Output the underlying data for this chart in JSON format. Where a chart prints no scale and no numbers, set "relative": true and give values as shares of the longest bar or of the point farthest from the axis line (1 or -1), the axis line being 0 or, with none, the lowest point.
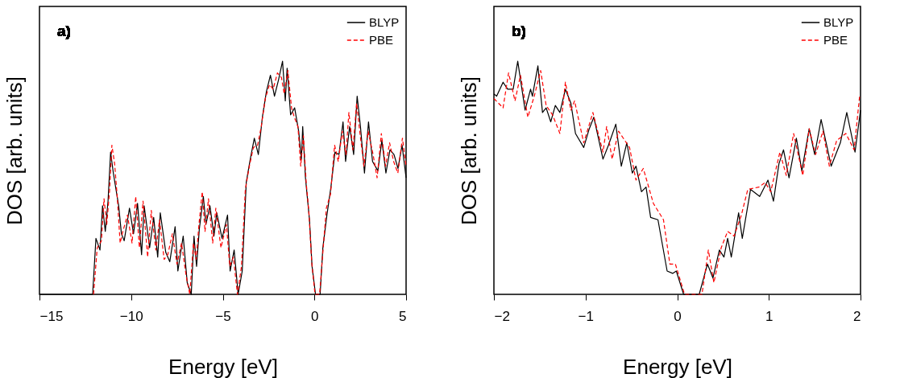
{
  "chart_data": [
    {
      "type": "line",
      "xlabel": "Energy [eV]",
      "ylabel": "DOS [arb. units]",
      "annotations": [
        "a)"
      ],
      "relative": true,
      "xlim": [
        -15,
        5
      ],
      "xticks": [
        -15,
        -10,
        -5,
        0,
        5
      ],
      "legend": "top right",
      "grid": false,
      "series": [
        {
          "name": "BLYP",
          "color": "#000000",
          "line_style": "solid",
          "x": [
            -15,
            -12.1,
            -11.92,
            -11.7,
            -11.56,
            -11.41,
            -11.26,
            -11.12,
            -10.97,
            -10.68,
            -10.53,
            -10.38,
            -10.09,
            -9.87,
            -9.65,
            -9.43,
            -9.29,
            -8.99,
            -8.77,
            -8.55,
            -8.41,
            -8.11,
            -7.89,
            -7.6,
            -7.45,
            -7.16,
            -6.94,
            -6.72,
            -6.57,
            -6.43,
            -6.28,
            -6.06,
            -5.92,
            -5.7,
            -5.48,
            -5.33,
            -5.04,
            -4.74,
            -4.6,
            -4.38,
            -4.16,
            -3.94,
            -3.72,
            -3.5,
            -3.28,
            -3.06,
            -2.84,
            -2.62,
            -2.4,
            -2.18,
            -1.96,
            -1.74,
            -1.59,
            -1.49,
            -1.3,
            -1.08,
            -0.86,
            -0.71,
            -0.64,
            -0.49,
            -0.27,
            -0.13,
            0.06,
            0.31,
            0.46,
            0.68,
            0.9,
            1.12,
            1.34,
            1.56,
            1.7,
            1.92,
            2.14,
            2.33,
            2.51,
            2.73,
            2.95,
            3.17,
            3.46,
            3.68,
            3.9,
            4.12,
            4.34,
            4.56,
            4.78,
            5.0
          ],
          "values": [
            0,
            0,
            0.24,
            0.19,
            0.38,
            0.27,
            0.4,
            0.61,
            0.52,
            0.38,
            0.26,
            0.23,
            0.37,
            0.26,
            0.39,
            0.17,
            0.38,
            0.2,
            0.33,
            0.16,
            0.35,
            0.18,
            0.14,
            0.29,
            0.1,
            0.25,
            0.05,
            0,
            0.25,
            0.12,
            0.28,
            0.42,
            0.3,
            0.38,
            0.25,
            0.35,
            0.24,
            0.34,
            0.1,
            0.19,
            0,
            0.1,
            0.48,
            0.58,
            0.67,
            0.6,
            0.76,
            0.87,
            0.94,
            0.85,
            0.92,
            1.0,
            0.83,
            0.97,
            0.77,
            0.8,
            0.7,
            0.58,
            0.72,
            0.5,
            0.32,
            0.12,
            0,
            0,
            0.2,
            0.34,
            0.46,
            0.61,
            0.6,
            0.74,
            0.57,
            0.72,
            0.6,
            0.85,
            0.72,
            0.52,
            0.74,
            0.57,
            0.53,
            0.66,
            0.52,
            0.62,
            0.6,
            0.54,
            0.64,
            0.5
          ]
        },
        {
          "name": "PBE",
          "color": "#ff0000",
          "line_style": "dashed",
          "x": [
            -12.05,
            -11.85,
            -11.62,
            -11.48,
            -11.33,
            -11.18,
            -11.05,
            -10.9,
            -10.75,
            -10.6,
            -10.45,
            -10.2,
            -9.95,
            -9.75,
            -9.55,
            -9.35,
            -9.1,
            -8.9,
            -8.65,
            -8.45,
            -8.2,
            -8.0,
            -7.75,
            -7.5,
            -7.25,
            -7.0,
            -6.8,
            -6.6,
            -6.45,
            -6.3,
            -6.12,
            -5.97,
            -5.78,
            -5.55,
            -5.38,
            -5.1,
            -4.8,
            -4.62,
            -4.42,
            -4.2,
            -3.98,
            -3.77,
            -3.55,
            -3.33,
            -3.1,
            -2.9,
            -2.68,
            -2.45,
            -2.25,
            -2.02,
            -1.8,
            -1.65,
            -1.45,
            -1.25,
            -1.1,
            -0.9,
            -0.75,
            -0.6,
            -0.45,
            -0.3,
            -0.15,
            0.03,
            0.28,
            0.45,
            0.65,
            0.88,
            1.1,
            1.3,
            1.52,
            1.72,
            1.88,
            2.1,
            2.3,
            2.5,
            2.7,
            2.93,
            3.2,
            3.42,
            3.65,
            3.88,
            4.1,
            4.32,
            4.55,
            4.8,
            5.0
          ],
          "values": [
            0,
            0.2,
            0.23,
            0.41,
            0.3,
            0.44,
            0.64,
            0.56,
            0.41,
            0.22,
            0.27,
            0.34,
            0.22,
            0.42,
            0.2,
            0.4,
            0.16,
            0.36,
            0.19,
            0.32,
            0.15,
            0.17,
            0.26,
            0.13,
            0.22,
            0.08,
            0,
            0.22,
            0.15,
            0.3,
            0.44,
            0.27,
            0.41,
            0.22,
            0.37,
            0.2,
            0.3,
            0.12,
            0.16,
            0,
            0.12,
            0.45,
            0.55,
            0.63,
            0.64,
            0.72,
            0.84,
            0.9,
            0.88,
            0.95,
            0.93,
            0.86,
            0.96,
            0.8,
            0.76,
            0.72,
            0.55,
            0.68,
            0.48,
            0.35,
            0.14,
            0,
            0,
            0.17,
            0.37,
            0.43,
            0.64,
            0.57,
            0.7,
            0.6,
            0.78,
            0.62,
            0.82,
            0.68,
            0.55,
            0.7,
            0.6,
            0.5,
            0.69,
            0.55,
            0.65,
            0.57,
            0.52,
            0.67,
            0.55
          ]
        }
      ]
    },
    {
      "type": "line",
      "xlabel": "Energy [eV]",
      "ylabel": "DOS [arb. units]",
      "annotations": [
        "b)"
      ],
      "relative": true,
      "xlim": [
        -2,
        2
      ],
      "xticks": [
        -2,
        -1,
        0,
        1,
        2
      ],
      "legend": "top right",
      "grid": false,
      "series": [
        {
          "name": "BLYP",
          "color": "#000000",
          "line_style": "solid",
          "x": [
            -2,
            -1.97,
            -1.9,
            -1.85,
            -1.79,
            -1.74,
            -1.66,
            -1.6,
            -1.58,
            -1.52,
            -1.47,
            -1.43,
            -1.38,
            -1.33,
            -1.28,
            -1.22,
            -1.16,
            -1.11,
            -1.02,
            -0.96,
            -0.91,
            -0.81,
            -0.75,
            -0.67,
            -0.61,
            -0.55,
            -0.49,
            -0.45,
            -0.39,
            -0.34,
            -0.29,
            -0.21,
            -0.11,
            -0.05,
            -0.01,
            0.07,
            0.24,
            0.33,
            0.39,
            0.46,
            0.51,
            0.55,
            0.59,
            0.67,
            0.71,
            0.8,
            0.9,
            0.99,
            1.05,
            1.11,
            1.16,
            1.22,
            1.3,
            1.36,
            1.44,
            1.5,
            1.57,
            1.68,
            1.78,
            1.85,
            1.94,
            2.0
          ],
          "values": [
            0.86,
            0.85,
            0.91,
            0.88,
            0.88,
            1.0,
            0.79,
            0.88,
            0.85,
            0.98,
            0.78,
            0.8,
            0.74,
            0.81,
            0.78,
            0.88,
            0.82,
            0.69,
            0.63,
            0.71,
            0.76,
            0.58,
            0.64,
            0.73,
            0.55,
            0.65,
            0.52,
            0.55,
            0.44,
            0.46,
            0.33,
            0.32,
            0.1,
            0.09,
            0.1,
            0,
            0,
            0.13,
            0.07,
            0.19,
            0.16,
            0.24,
            0.16,
            0.35,
            0.24,
            0.45,
            0.42,
            0.49,
            0.4,
            0.56,
            0.62,
            0.5,
            0.67,
            0.53,
            0.71,
            0.6,
            0.75,
            0.55,
            0.65,
            0.78,
            0.61,
            0.79
          ]
        },
        {
          "name": "PBE",
          "color": "#ff0000",
          "line_style": "dashed",
          "x": [
            -2,
            -1.9,
            -1.84,
            -1.77,
            -1.71,
            -1.63,
            -1.56,
            -1.49,
            -1.43,
            -1.36,
            -1.28,
            -1.22,
            -1.16,
            -1.12,
            -1.02,
            -0.92,
            -0.81,
            -0.77,
            -0.71,
            -0.64,
            -0.52,
            -0.45,
            -0.37,
            -0.26,
            -0.15,
            -0.08,
            -0.02,
            0.08,
            0.27,
            0.34,
            0.4,
            0.48,
            0.55,
            0.62,
            0.7,
            0.77,
            0.89,
            0.96,
            1.02,
            1.12,
            1.19,
            1.27,
            1.37,
            1.44,
            1.51,
            1.59,
            1.66,
            1.74,
            1.84,
            1.93,
            1.99
          ],
          "values": [
            0.84,
            0.8,
            0.95,
            0.83,
            0.94,
            0.76,
            0.85,
            0.96,
            0.81,
            0.77,
            0.69,
            0.91,
            0.79,
            0.83,
            0.65,
            0.78,
            0.61,
            0.72,
            0.58,
            0.7,
            0.63,
            0.49,
            0.54,
            0.39,
            0.32,
            0.13,
            0.13,
            0,
            0,
            0.19,
            0.05,
            0.2,
            0.27,
            0.25,
            0.34,
            0.45,
            0.46,
            0.48,
            0.44,
            0.61,
            0.51,
            0.69,
            0.51,
            0.71,
            0.6,
            0.7,
            0.55,
            0.66,
            0.69,
            0.62,
            0.85
          ]
        }
      ]
    }
  ]
}
